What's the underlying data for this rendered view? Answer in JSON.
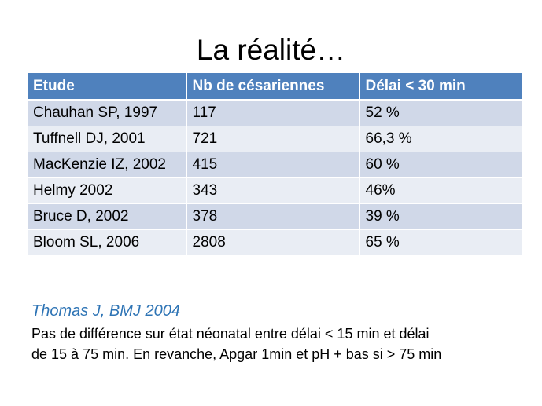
{
  "slide": {
    "title": "La réalité…",
    "table": {
      "headers": [
        "Etude",
        "Nb de césariennes",
        "Délai < 30 min"
      ],
      "rows": [
        [
          "Chauhan SP, 1997",
          "117",
          "52 %"
        ],
        [
          "Tuffnell  DJ, 2001",
          "721",
          "66,3 %"
        ],
        [
          "MacKenzie IZ, 2002",
          "415",
          "60 %"
        ],
        [
          "Helmy 2002",
          "343",
          "46%"
        ],
        [
          "Bruce D, 2002",
          "378",
          "39 %"
        ],
        [
          "Bloom SL, 2006",
          "2808",
          "65 %"
        ]
      ]
    },
    "reference": "Thomas J, BMJ 2004",
    "note_lines": [
      "Pas de différence sur état néonatal entre délai < 15 min et délai",
      "de 15 à 75 min. En revanche, Apgar 1min et pH + bas si > 75 min"
    ]
  },
  "colors": {
    "header_bg": "#4f81bd",
    "row_odd": "#d0d8e8",
    "row_even": "#e9edf4",
    "reference_text": "#2e74b5"
  }
}
